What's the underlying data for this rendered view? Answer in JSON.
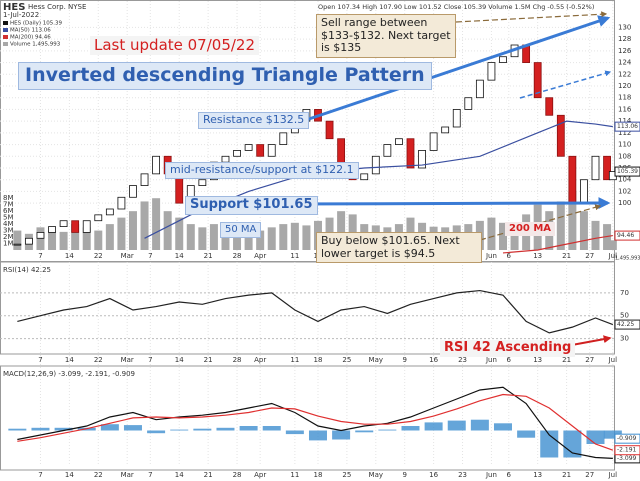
{
  "chart_data": {
    "type": "candlestick",
    "title": "HES",
    "subtitle": "Hess Corp. NYSE",
    "date": "1-Jul-2022",
    "quote": "Open 107.34  High 107.90  Low 101.52  Close 105.39  Volume 1.5M  Chg -0.55 (-0.52%)",
    "xlim": [
      -3,
      103.2
    ],
    "xticks": [
      {
        "value": 4,
        "label": "7"
      },
      {
        "value": 9,
        "label": "14"
      },
      {
        "value": 14,
        "label": "22"
      },
      {
        "value": 19,
        "label": "Mar"
      },
      {
        "value": 23,
        "label": "7"
      },
      {
        "value": 28,
        "label": "14"
      },
      {
        "value": 33,
        "label": "21"
      },
      {
        "value": 38,
        "label": "28"
      },
      {
        "value": 42,
        "label": "Apr"
      },
      {
        "value": 48,
        "label": "11"
      },
      {
        "value": 52,
        "label": "18"
      },
      {
        "value": 57,
        "label": "25"
      },
      {
        "value": 62,
        "label": "May"
      },
      {
        "value": 67,
        "label": "9"
      },
      {
        "value": 72,
        "label": "16"
      },
      {
        "value": 77,
        "label": "23"
      },
      {
        "value": 82,
        "label": "Jun"
      },
      {
        "value": 85,
        "label": "6"
      },
      {
        "value": 90,
        "label": "13"
      },
      {
        "value": 95,
        "label": "21"
      },
      {
        "value": 99,
        "label": "27"
      },
      {
        "value": 103,
        "label": "Jul"
      }
    ],
    "ylim": [
      92,
      134
    ],
    "yticks": [
      100,
      102,
      104,
      106,
      108,
      110,
      112,
      114,
      116,
      118,
      120,
      122,
      124,
      126,
      128,
      130
    ],
    "y2lim": [
      0,
      38
    ],
    "y2ticks": [
      {
        "value": 1,
        "label": "1M"
      },
      {
        "value": 2,
        "label": "2M"
      },
      {
        "value": 3,
        "label": "3M"
      },
      {
        "value": 4,
        "label": "4M"
      },
      {
        "value": 5,
        "label": "5M"
      },
      {
        "value": 6,
        "label": "6M"
      },
      {
        "value": 7,
        "label": "7M"
      },
      {
        "value": 8,
        "label": "8M"
      }
    ],
    "grid": true,
    "series": [
      {
        "name": "HES (Daily) 105.39",
        "color": "#111111",
        "end_label": "105.39",
        "x": [
          0,
          2,
          4,
          6,
          8,
          10,
          12,
          14,
          16,
          18,
          20,
          22,
          24,
          26,
          28,
          30,
          32,
          34,
          36,
          38,
          40,
          42,
          44,
          46,
          48,
          50,
          52,
          54,
          56,
          58,
          60,
          62,
          64,
          66,
          68,
          70,
          72,
          74,
          76,
          78,
          80,
          82,
          84,
          86,
          88,
          90,
          92,
          94,
          96,
          98,
          100,
          102,
          103
        ],
        "values": [
          93,
          94,
          95,
          96,
          97,
          95,
          97,
          98,
          99,
          101,
          103,
          105,
          108,
          105,
          100,
          103,
          104,
          107,
          108,
          109,
          110,
          108,
          110,
          112,
          114,
          116,
          114,
          111,
          106,
          104,
          105,
          108,
          110,
          111,
          106,
          109,
          112,
          113,
          116,
          118,
          121,
          124,
          125,
          127,
          124,
          118,
          115,
          108,
          100,
          104,
          108,
          104,
          105.39
        ]
      },
      {
        "name": "MA(50) 113.06",
        "color": "#3a4fa0",
        "end_label": "113.06",
        "x": [
          22,
          30,
          40,
          50,
          60,
          70,
          80,
          90,
          95,
          100,
          103
        ],
        "values": [
          94,
          98,
          102,
          105,
          106,
          106.5,
          108,
          112,
          114,
          113.5,
          113.06
        ]
      },
      {
        "name": "MA(200) 94.46",
        "color": "#d03030",
        "end_label": "94.46",
        "x": [
          84,
          90,
          95,
          100,
          103
        ],
        "values": [
          91.5,
          92,
          93,
          94,
          94.46
        ]
      },
      {
        "name": "Volume 1,495,993",
        "color": "#a8a8a8",
        "axis": "y2",
        "end_label": "1,495,993",
        "x": [
          0,
          2,
          4,
          6,
          8,
          10,
          12,
          14,
          16,
          18,
          20,
          22,
          24,
          26,
          28,
          30,
          32,
          34,
          36,
          38,
          40,
          42,
          44,
          46,
          48,
          50,
          52,
          54,
          56,
          58,
          60,
          62,
          64,
          66,
          68,
          70,
          72,
          74,
          76,
          78,
          80,
          82,
          84,
          86,
          88,
          90,
          92,
          94,
          96,
          98,
          100,
          102,
          103
        ],
        "values": [
          3,
          2.5,
          3.5,
          3,
          2.8,
          4,
          3.5,
          3,
          4,
          5,
          6,
          7.5,
          8,
          6,
          5,
          4,
          3.5,
          4,
          3.5,
          3,
          3.2,
          3,
          3.5,
          4,
          4.2,
          3.8,
          4.5,
          5,
          6,
          5.5,
          4,
          3.8,
          3.5,
          4,
          5,
          4.2,
          3.6,
          3.5,
          3.8,
          4,
          4.5,
          5,
          4.2,
          4,
          5.5,
          7,
          6,
          7.5,
          9,
          6,
          4.5,
          4,
          1.5
        ]
      }
    ],
    "annotations": [
      "Last update 07/05/22",
      "Inverted descending Triangle Pattern",
      "Sell range between $133-$132. Next target is $135",
      "Resistance $132.5",
      "mid-resistance/support at $122.1",
      "Support $101.65",
      "50 MA",
      "Buy below $101.65. Next lower target is $94.5",
      "200 MA",
      "RSI 42 Ascending"
    ],
    "rsi": {
      "title": "RSI(14) 42.25",
      "color": "#222222",
      "end_label": "42.25",
      "ylim": [
        20,
        90
      ],
      "yticks": [
        30,
        50,
        70
      ],
      "x": [
        0,
        4,
        8,
        12,
        16,
        20,
        24,
        28,
        32,
        36,
        40,
        44,
        48,
        52,
        56,
        60,
        64,
        68,
        72,
        76,
        80,
        84,
        88,
        92,
        96,
        100,
        103
      ],
      "values": [
        45,
        50,
        55,
        58,
        65,
        55,
        58,
        62,
        60,
        65,
        68,
        70,
        55,
        45,
        55,
        58,
        52,
        60,
        65,
        70,
        72,
        68,
        45,
        35,
        40,
        48,
        42.25
      ]
    },
    "macd": {
      "title": "MACD(12,26,9) -3.099, -2.191, -0.909",
      "ylim": [
        -3.5,
        6.5
      ],
      "x": [
        0,
        4,
        8,
        12,
        16,
        20,
        24,
        28,
        32,
        36,
        40,
        44,
        48,
        52,
        56,
        60,
        64,
        68,
        72,
        76,
        80,
        84,
        88,
        92,
        96,
        100,
        103
      ],
      "series": [
        {
          "color": "#111111",
          "end_label": "-3.099",
          "values": [
            -1,
            -0.5,
            0,
            0.5,
            1.5,
            2,
            1.2,
            1.5,
            1.7,
            2,
            2.5,
            3,
            2,
            0.5,
            0,
            0.5,
            0.8,
            1.5,
            2.5,
            3.5,
            4.5,
            4.8,
            3,
            -0.5,
            -2.5,
            -3,
            -3.099
          ]
        },
        {
          "color": "#e03030",
          "end_label": "-2.191",
          "values": [
            -1.2,
            -0.8,
            -0.3,
            0.2,
            0.8,
            1.4,
            1.5,
            1.4,
            1.5,
            1.7,
            2,
            2.5,
            2.4,
            1.6,
            1,
            0.7,
            0.7,
            1,
            1.6,
            2.4,
            3.3,
            4,
            3.8,
            2.5,
            0.5,
            -1.5,
            -2.191
          ]
        },
        {
          "color": "#3f8fd0",
          "end_label": "-0.909",
          "values": [
            0.2,
            0.3,
            0.3,
            0.3,
            0.7,
            0.6,
            -0.3,
            0.1,
            0.2,
            0.3,
            0.5,
            0.5,
            -0.4,
            -1.1,
            -1,
            -0.2,
            0.1,
            0.5,
            0.9,
            1.1,
            1.2,
            0.8,
            -0.8,
            -3,
            -3,
            -1.5,
            -0.909
          ]
        }
      ]
    }
  }
}
